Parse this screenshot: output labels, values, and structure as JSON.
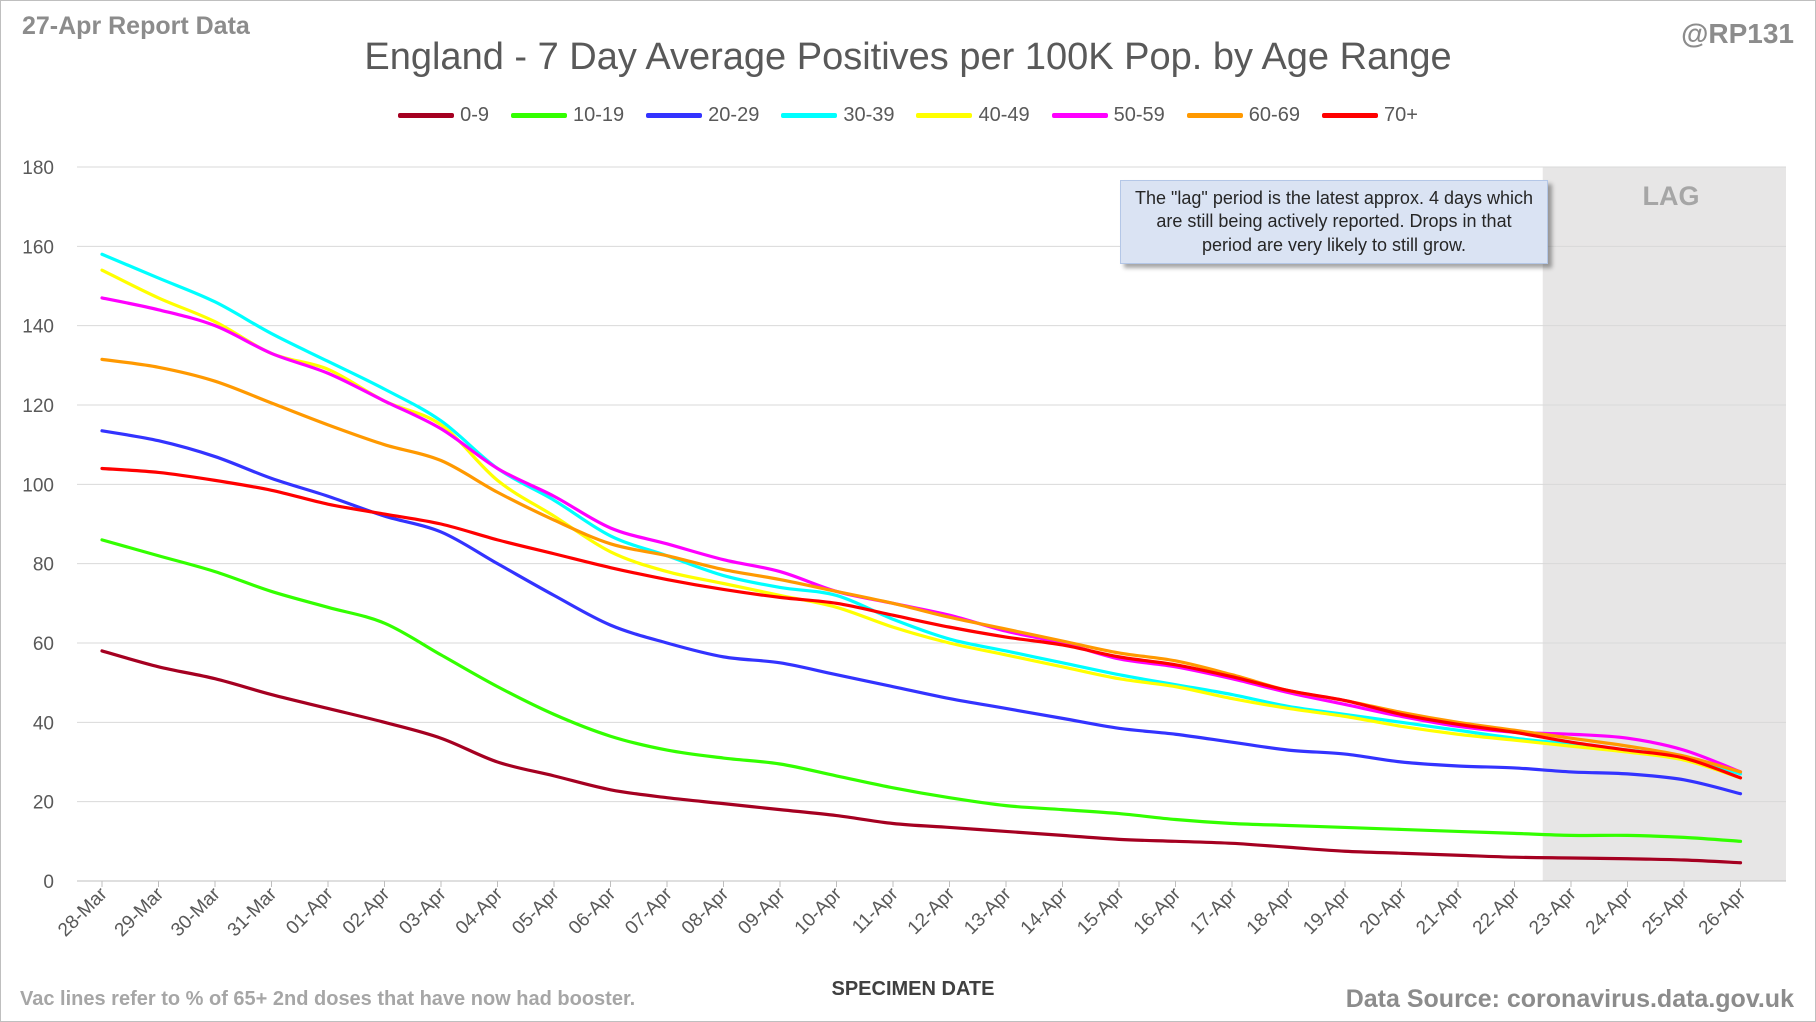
{
  "header": {
    "report_date": "27-Apr Report Data",
    "handle": "@RP131"
  },
  "footer": {
    "note": "Vac lines refer to % of 65+ 2nd doses that have now had booster.",
    "source": "Data Source: coronavirus.data.gov.uk"
  },
  "annotation": "The \"lag\" period is the latest approx. 4 days which are still being actively reported.  Drops in that period are very likely to still grow.",
  "lag_label": "LAG",
  "chart_data": {
    "type": "line",
    "title": "England - 7 Day Average Positives per 100K Pop. by Age Range",
    "xlabel": "SPECIMEN DATE",
    "ylabel": "",
    "ylim": [
      0,
      180
    ],
    "yticks": [
      0,
      20,
      40,
      60,
      80,
      100,
      120,
      140,
      160,
      180
    ],
    "grid": true,
    "legend_position": "top",
    "lag_start": "23-Apr",
    "x": [
      "28-Mar",
      "29-Mar",
      "30-Mar",
      "31-Mar",
      "01-Apr",
      "02-Apr",
      "03-Apr",
      "04-Apr",
      "05-Apr",
      "06-Apr",
      "07-Apr",
      "08-Apr",
      "09-Apr",
      "10-Apr",
      "11-Apr",
      "12-Apr",
      "13-Apr",
      "14-Apr",
      "15-Apr",
      "16-Apr",
      "17-Apr",
      "18-Apr",
      "19-Apr",
      "20-Apr",
      "21-Apr",
      "22-Apr",
      "23-Apr",
      "24-Apr",
      "25-Apr",
      "26-Apr"
    ],
    "series": [
      {
        "name": "0-9",
        "color": "#a50021",
        "values": [
          58,
          54,
          51,
          47,
          43.5,
          40,
          36,
          30,
          26.5,
          23,
          21,
          19.5,
          18,
          16.5,
          14.5,
          13.5,
          12.5,
          11.5,
          10.5,
          10,
          9.5,
          8.5,
          7.5,
          7,
          6.5,
          6,
          5.8,
          5.6,
          5.3,
          4.6
        ]
      },
      {
        "name": "10-19",
        "color": "#33ff00",
        "values": [
          86,
          82,
          78,
          73,
          69,
          65,
          57,
          49,
          42,
          36.5,
          33,
          31,
          29.5,
          26.5,
          23.5,
          21,
          19,
          18,
          17,
          15.5,
          14.5,
          14,
          13.5,
          13,
          12.5,
          12,
          11.5,
          11.5,
          11,
          10
        ]
      },
      {
        "name": "20-29",
        "color": "#3333ff",
        "values": [
          113.5,
          111,
          107,
          101.5,
          97,
          92,
          88,
          80,
          72,
          64.5,
          60,
          56.5,
          55,
          52,
          49,
          46,
          43.5,
          41,
          38.5,
          37,
          35,
          33,
          32,
          30,
          29,
          28.5,
          27.5,
          27,
          25.5,
          22
        ]
      },
      {
        "name": "30-39",
        "color": "#00ffff",
        "values": [
          158,
          152,
          146,
          138,
          131,
          124,
          116,
          104,
          96,
          87,
          82,
          77,
          74,
          72,
          66,
          61,
          58,
          55,
          52,
          49.5,
          47,
          44,
          42,
          40,
          38,
          36,
          34.5,
          33,
          31,
          27
        ]
      },
      {
        "name": "40-49",
        "color": "#ffff00",
        "values": [
          154,
          147,
          141,
          133,
          129,
          121,
          115,
          101,
          92,
          83,
          78,
          75,
          72,
          69,
          64,
          60,
          57,
          54,
          51,
          49,
          46,
          43.5,
          41.5,
          39,
          37,
          35.5,
          34,
          32.5,
          30.5,
          26
        ]
      },
      {
        "name": "50-59",
        "color": "#ff00ff",
        "values": [
          147,
          144,
          140,
          133,
          128,
          121,
          114,
          104,
          97,
          89,
          85,
          81,
          78,
          73,
          70,
          67,
          63,
          60,
          56,
          54,
          51,
          47.5,
          44.5,
          41.5,
          39,
          37.5,
          37,
          36,
          33,
          27.5
        ]
      },
      {
        "name": "60-69",
        "color": "#ff9900",
        "values": [
          131.5,
          129.5,
          126,
          120.5,
          115,
          110,
          106,
          98,
          91,
          85,
          82,
          78.5,
          76,
          73,
          70,
          66.5,
          63.5,
          60.5,
          57.5,
          55.5,
          52,
          48,
          45.5,
          42.5,
          40,
          38,
          36,
          34,
          31.5,
          27.5
        ]
      },
      {
        "name": "70+",
        "color": "#ff0000",
        "values": [
          104,
          103,
          101,
          98.5,
          95,
          92.5,
          90,
          86,
          82.5,
          79,
          76,
          73.5,
          71.5,
          70,
          67,
          64,
          61.5,
          59.5,
          56.5,
          54.5,
          51.5,
          48,
          45.5,
          42,
          39.5,
          37.5,
          35,
          33,
          31,
          26
        ]
      }
    ]
  }
}
